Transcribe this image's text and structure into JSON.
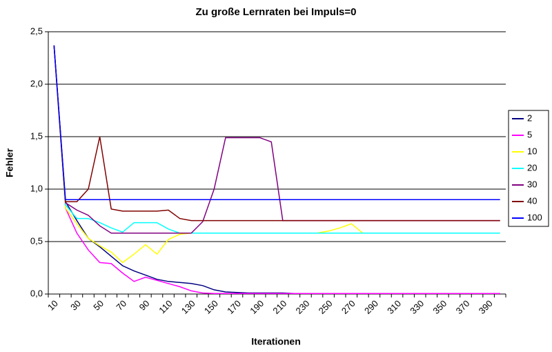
{
  "chart_data": {
    "type": "line",
    "title": "Zu große Lernraten bei Impuls=0",
    "x_label": "Iterationen",
    "y_label": "Fehler",
    "categories": [
      "10",
      null,
      "30",
      null,
      "50",
      null,
      "70",
      null,
      "90",
      null,
      "110",
      null,
      "130",
      null,
      "150",
      null,
      "170",
      null,
      "190",
      null,
      "210",
      null,
      "230",
      null,
      "250",
      null,
      "270",
      null,
      "290",
      null,
      "310",
      null,
      "330",
      null,
      "350",
      null,
      "370",
      null,
      "390",
      null
    ],
    "ylim": [
      0,
      2.5
    ],
    "yticks": [
      {
        "value": 0,
        "label": "0,0"
      },
      {
        "value": 0.5,
        "label": "0,5"
      },
      {
        "value": 1,
        "label": "1,0"
      },
      {
        "value": 1.5,
        "label": "1,5"
      },
      {
        "value": 2,
        "label": "2,0"
      },
      {
        "value": 2.5,
        "label": "2,5"
      }
    ],
    "grid": true,
    "legend": "right",
    "series": [
      {
        "name": "2",
        "color": "#000080",
        "values": [
          2.37,
          0.88,
          0.7,
          0.53,
          0.45,
          0.36,
          0.27,
          0.22,
          0.18,
          0.14,
          0.12,
          0.11,
          0.1,
          0.08,
          0.04,
          0.02,
          0.015,
          0.01,
          0.01,
          0.01,
          0.01,
          0.005,
          0.005,
          0.005,
          0.005,
          0.005,
          0.005,
          0.005,
          0.005,
          0.005,
          0.005,
          0.005,
          0.005,
          0.005,
          0.005,
          0.005,
          0.005,
          0.005,
          0.005,
          0.005
        ]
      },
      {
        "name": "5",
        "color": "#ff00ff",
        "values": [
          2.37,
          0.82,
          0.58,
          0.42,
          0.3,
          0.29,
          0.2,
          0.12,
          0.16,
          0.13,
          0.1,
          0.07,
          0.03,
          0.01,
          0.005,
          0.005,
          0.005,
          0.005,
          0.005,
          0.005,
          0.005,
          0.005,
          0.005,
          0.005,
          0.005,
          0.005,
          0.005,
          0.005,
          0.005,
          0.005,
          0.005,
          0.005,
          0.005,
          0.005,
          0.005,
          0.005,
          0.005,
          0.005,
          0.005,
          0.005
        ]
      },
      {
        "name": "10",
        "color": "#ffff00",
        "values": [
          2.37,
          0.82,
          0.67,
          0.53,
          0.46,
          0.4,
          0.3,
          0.38,
          0.47,
          0.38,
          0.52,
          0.57,
          0.58,
          0.58,
          0.58,
          0.58,
          0.58,
          0.58,
          0.58,
          0.58,
          0.58,
          0.58,
          0.58,
          0.58,
          0.6,
          0.63,
          0.67,
          0.58,
          0.58,
          0.58,
          0.58,
          0.58,
          0.58,
          0.58,
          0.58,
          0.58,
          0.58,
          0.58,
          0.58,
          0.58
        ]
      },
      {
        "name": "20",
        "color": "#00ffff",
        "values": [
          2.37,
          0.85,
          0.72,
          0.72,
          0.68,
          0.63,
          0.59,
          0.68,
          0.68,
          0.68,
          0.62,
          0.58,
          0.58,
          0.58,
          0.58,
          0.58,
          0.58,
          0.58,
          0.58,
          0.58,
          0.58,
          0.58,
          0.58,
          0.58,
          0.58,
          0.58,
          0.58,
          0.58,
          0.58,
          0.58,
          0.58,
          0.58,
          0.58,
          0.58,
          0.58,
          0.58,
          0.58,
          0.58,
          0.58,
          0.58
        ]
      },
      {
        "name": "30",
        "color": "#800080",
        "values": [
          2.37,
          0.87,
          0.8,
          0.75,
          0.65,
          0.58,
          0.58,
          0.58,
          0.58,
          0.58,
          0.58,
          0.58,
          0.58,
          0.69,
          1.0,
          1.49,
          1.49,
          1.49,
          1.49,
          1.45,
          0.7,
          0.7,
          0.7,
          0.7,
          0.7,
          0.7,
          0.7,
          0.7,
          0.7,
          0.7,
          0.7,
          0.7,
          0.7,
          0.7,
          0.7,
          0.7,
          0.7,
          0.7,
          0.7,
          0.7
        ]
      },
      {
        "name": "40",
        "color": "#800000",
        "values": [
          2.37,
          0.88,
          0.88,
          1.0,
          1.5,
          0.81,
          0.79,
          0.79,
          0.79,
          0.79,
          0.8,
          0.72,
          0.7,
          0.7,
          0.7,
          0.7,
          0.7,
          0.7,
          0.7,
          0.7,
          0.7,
          0.7,
          0.7,
          0.7,
          0.7,
          0.7,
          0.7,
          0.7,
          0.7,
          0.7,
          0.7,
          0.7,
          0.7,
          0.7,
          0.7,
          0.7,
          0.7,
          0.7,
          0.7,
          0.7
        ]
      },
      {
        "name": "100",
        "color": "#0000ff",
        "values": [
          2.37,
          0.9,
          0.9,
          0.9,
          0.9,
          0.9,
          0.9,
          0.9,
          0.9,
          0.9,
          0.9,
          0.9,
          0.9,
          0.9,
          0.9,
          0.9,
          0.9,
          0.9,
          0.9,
          0.9,
          0.9,
          0.9,
          0.9,
          0.9,
          0.9,
          0.9,
          0.9,
          0.9,
          0.9,
          0.9,
          0.9,
          0.9,
          0.9,
          0.9,
          0.9,
          0.9,
          0.9,
          0.9,
          0.9,
          0.9
        ]
      }
    ]
  }
}
